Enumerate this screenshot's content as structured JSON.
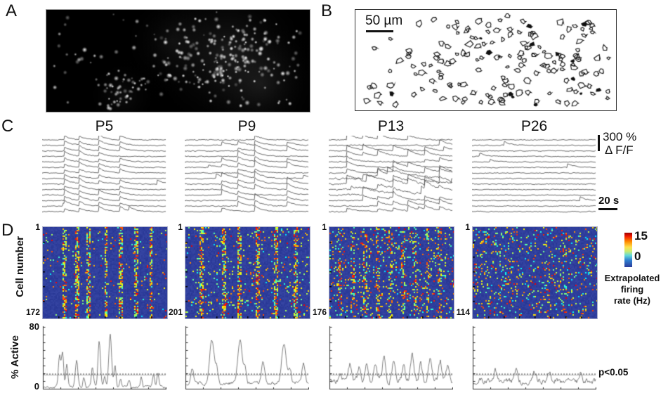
{
  "panel_labels": {
    "a": "A",
    "b": "B",
    "c": "C",
    "d": "D"
  },
  "panel_a": {
    "seed": 5,
    "cells": 330
  },
  "panel_b": {
    "scalebar": "50 µm",
    "seed": 9,
    "cells": 172
  },
  "panel_c": {
    "amp_value": "300 %",
    "amp_unit": "Δ F/F",
    "time_scale": "20 s",
    "n_traces": 14
  },
  "panel_d": {
    "ylabel": "Cell number",
    "colorbar_max": "15",
    "colorbar_min": "0",
    "colorbar_caption_1": "Extrapolated",
    "colorbar_caption_2": "firing",
    "colorbar_caption_3": "rate (Hz)"
  },
  "active_axis": {
    "ylabel": "% Active",
    "ymax": "80",
    "ymin": "0",
    "sig_label": "p<0.05",
    "ymax_val": 80,
    "threshold_val": 19
  },
  "colors": {
    "heatmap_bg": "#2b3a9b",
    "trace": "#3a3a3a",
    "active_line": "#606060",
    "threshold_solid": "#b5b5b5",
    "threshold_dot": "#444444",
    "axis": "#333333"
  },
  "groups": [
    {
      "title": "P5",
      "first_cell": "1",
      "cells": "172",
      "seed": 11,
      "heat": {
        "events": [
          0.17,
          0.27,
          0.36,
          0.5,
          0.62,
          0.74,
          0.86
        ],
        "stripe_p": 0.5,
        "speckle_p": 0.03,
        "stripe_w": 1.3
      },
      "trace": {
        "events": [
          0.18,
          0.3,
          0.46,
          0.63
        ],
        "participation": 0.95,
        "amp_min": 4.5,
        "amp_span": 4,
        "decay": 0.9,
        "noise": 1.0,
        "rand_p": 0.0006,
        "messy": false
      },
      "active": {
        "base": 2,
        "noise": 1.6,
        "peaks": [
          [
            0.13,
            40,
            1.6
          ],
          [
            0.155,
            46,
            1.6
          ],
          [
            0.19,
            30,
            1.4
          ],
          [
            0.27,
            34,
            1.8
          ],
          [
            0.33,
            14,
            1.4
          ],
          [
            0.4,
            24,
            1.5
          ],
          [
            0.455,
            58,
            1.8
          ],
          [
            0.5,
            16,
            1.3
          ],
          [
            0.545,
            68,
            2.0
          ],
          [
            0.585,
            30,
            1.5
          ],
          [
            0.63,
            12,
            1.3
          ],
          [
            0.7,
            10,
            1.2
          ],
          [
            0.8,
            14,
            1.4
          ],
          [
            0.9,
            16,
            1.4
          ],
          [
            0.935,
            18,
            1.3
          ]
        ]
      }
    },
    {
      "title": "P9",
      "first_cell": "1",
      "cells": "201",
      "seed": 22,
      "heat": {
        "events": [
          0.12,
          0.3,
          0.43,
          0.57,
          0.72,
          0.88
        ],
        "stripe_p": 0.45,
        "speckle_p": 0.07,
        "stripe_w": 1.6
      },
      "trace": {
        "events": [
          0.3,
          0.43,
          0.57,
          0.83
        ],
        "participation": 0.8,
        "amp_min": 4,
        "amp_span": 6,
        "decay": 0.92,
        "noise": 1.1,
        "rand_p": 0.001,
        "messy": false
      },
      "active": {
        "base": 7,
        "noise": 2.2,
        "peaks": [
          [
            0.05,
            22,
            2
          ],
          [
            0.21,
            55,
            3.2
          ],
          [
            0.25,
            20,
            2
          ],
          [
            0.44,
            56,
            3.0
          ],
          [
            0.48,
            22,
            2
          ],
          [
            0.63,
            26,
            2.4
          ],
          [
            0.8,
            52,
            3.2
          ],
          [
            0.85,
            18,
            2
          ],
          [
            0.96,
            24,
            2.2
          ]
        ]
      }
    },
    {
      "title": "P13",
      "first_cell": "1",
      "cells": "176",
      "seed": 33,
      "heat": {
        "events": [
          0.08,
          0.18,
          0.28,
          0.38,
          0.48,
          0.58,
          0.68,
          0.78,
          0.88
        ],
        "stripe_p": 0.22,
        "speckle_p": 0.11,
        "stripe_w": 1.4
      },
      "trace": {
        "events": [
          0.15,
          0.28,
          0.4,
          0.52,
          0.64,
          0.78,
          0.9
        ],
        "participation": 0.5,
        "amp_min": 4,
        "amp_span": 6,
        "decay": 0.93,
        "noise": 1.3,
        "rand_p": 0.002,
        "messy": true
      },
      "active": {
        "base": 10,
        "noise": 3.4,
        "peaks": [
          [
            0.08,
            12,
            2
          ],
          [
            0.16,
            22,
            2.2
          ],
          [
            0.24,
            16,
            2
          ],
          [
            0.3,
            26,
            2.4
          ],
          [
            0.37,
            20,
            2
          ],
          [
            0.44,
            30,
            2.4
          ],
          [
            0.52,
            24,
            2.2
          ],
          [
            0.6,
            18,
            2
          ],
          [
            0.67,
            34,
            2.4
          ],
          [
            0.74,
            24,
            2
          ],
          [
            0.82,
            30,
            2.4
          ],
          [
            0.9,
            26,
            2.2
          ],
          [
            0.96,
            20,
            2
          ]
        ]
      }
    },
    {
      "title": "P26",
      "first_cell": "1",
      "cells": "114",
      "seed": 44,
      "heat": {
        "events": [],
        "stripe_p": 0,
        "speckle_p": 0.12,
        "stripe_w": 0
      },
      "trace": {
        "events": [],
        "participation": 0,
        "amp_min": 3,
        "amp_span": 4,
        "decay": 0.9,
        "noise": 1.0,
        "rand_p": 0.0025,
        "messy": false
      },
      "active": {
        "base": 10,
        "noise": 3.2,
        "peaks": [
          [
            0.18,
            14,
            2
          ],
          [
            0.35,
            16,
            2
          ],
          [
            0.5,
            10,
            2
          ],
          [
            0.62,
            12,
            2
          ],
          [
            0.88,
            14,
            2
          ]
        ]
      }
    }
  ]
}
